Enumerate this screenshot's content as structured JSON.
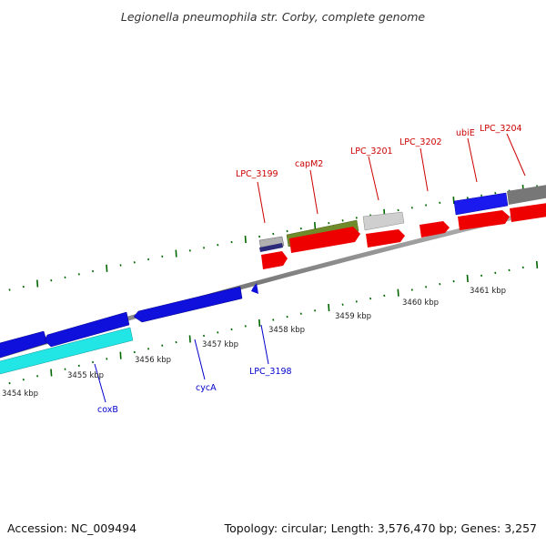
{
  "title": "Legionella pneumophila str. Corby, complete genome",
  "footer": {
    "accession": "Accession: NC_009494",
    "summary": "Topology: circular; Length: 3,576,470 bp; Genes: 3,257"
  },
  "colors": {
    "top_label": "#cc0000",
    "bottom_label": "#0000cc",
    "tick_green": "#006600",
    "backbone": "#888888"
  },
  "tick_labels": [
    "3454 kbp",
    "3455 kbp",
    "3456 kbp",
    "3457 kbp",
    "3458 kbp",
    "3459 kbp",
    "3460 kbp",
    "3461 kbp"
  ],
  "top_genes": [
    "LPC_3199",
    "capM2",
    "LPC_3201",
    "LPC_3202",
    "ubiE",
    "LPC_3204"
  ],
  "bottom_genes": [
    "coxB",
    "cycA",
    "LPC_3198"
  ]
}
